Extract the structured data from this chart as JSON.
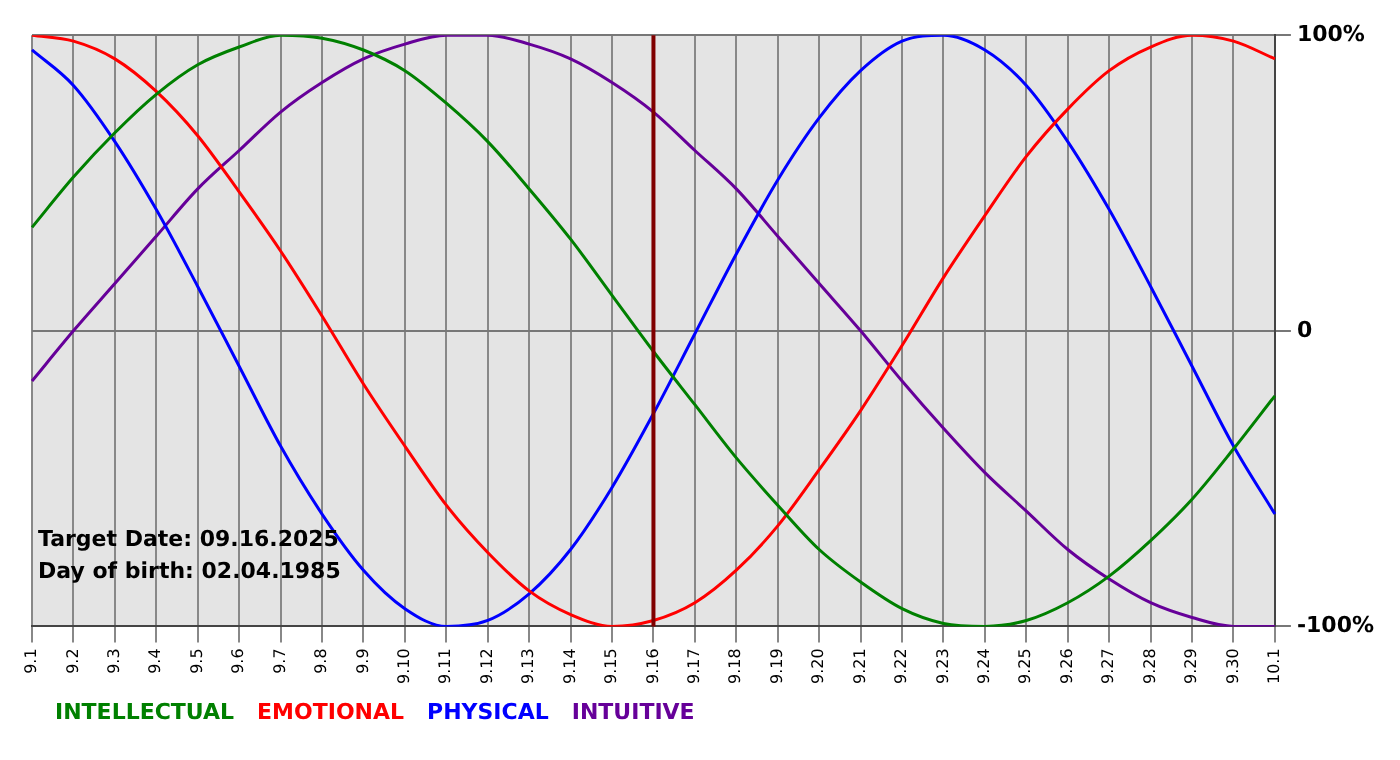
{
  "chart_data": {
    "type": "line",
    "categories": [
      "9.1",
      "9.2",
      "9.3",
      "9.4",
      "9.5",
      "9.6",
      "9.7",
      "9.8",
      "9.9",
      "9.10",
      "9.11",
      "9.12",
      "9.13",
      "9.14",
      "9.15",
      "9.16",
      "9.17",
      "9.18",
      "9.19",
      "9.20",
      "9.21",
      "9.22",
      "9.23",
      "9.24",
      "9.25",
      "9.26",
      "9.27",
      "9.28",
      "9.29",
      "9.30",
      "10.1"
    ],
    "series": [
      {
        "name": "INTELLECTUAL",
        "color": "#008000",
        "values": [
          35,
          52,
          67,
          80,
          90,
          96,
          100,
          99,
          95,
          88,
          77,
          64,
          48,
          31,
          12,
          -7,
          -25,
          -43,
          -59,
          -74,
          -85,
          -94,
          -99,
          -100,
          -98,
          -92,
          -83,
          -71,
          -57,
          -40,
          -22
        ]
      },
      {
        "name": "EMOTIONAL",
        "color": "#ff0000",
        "values": [
          100,
          98,
          92,
          81,
          66,
          47,
          27,
          5,
          -18,
          -39,
          -59,
          -75,
          -88,
          -96,
          -100,
          -98,
          -92,
          -81,
          -66,
          -47,
          -27,
          -5,
          18,
          39,
          59,
          75,
          88,
          96,
          100,
          98,
          92
        ]
      },
      {
        "name": "PHYSICAL",
        "color": "#0000ff",
        "values": [
          95,
          83,
          64,
          41,
          15,
          -12,
          -39,
          -62,
          -81,
          -94,
          -100,
          -98,
          -89,
          -74,
          -53,
          -28,
          -1,
          26,
          51,
          72,
          88,
          98,
          100,
          95,
          83,
          64,
          41,
          15,
          -12,
          -39,
          -62
        ]
      },
      {
        "name": "INTUITIVE",
        "color": "#660099",
        "values": [
          -17,
          0,
          16,
          32,
          48,
          61,
          74,
          84,
          92,
          97,
          100,
          100,
          97,
          92,
          84,
          74,
          61,
          48,
          32,
          16,
          0,
          -17,
          -33,
          -48,
          -61,
          -74,
          -84,
          -92,
          -97,
          -100,
          -100
        ]
      }
    ],
    "ylim": [
      -100,
      100
    ],
    "yticks": [
      {
        "value": -100,
        "label": "-100%"
      },
      {
        "value": 0,
        "label": "0"
      },
      {
        "value": 100,
        "label": "100%"
      }
    ],
    "grid": true,
    "legend": "bottom left",
    "marker": "none",
    "line_style": "solid",
    "ref_lines": [
      {
        "axis": "x",
        "value": "9.16",
        "color": "#800000"
      }
    ],
    "annotations": [
      "Target Date: 09.16.2025",
      "Day of birth: 02.04.1985"
    ]
  }
}
